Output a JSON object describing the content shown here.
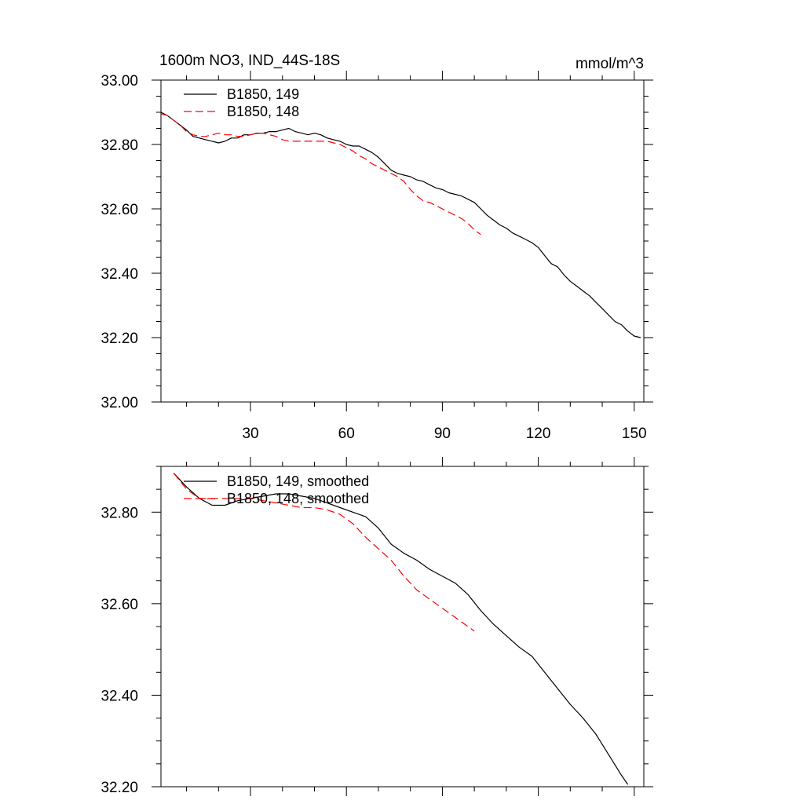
{
  "chart_data": [
    {
      "type": "line",
      "title": "1600m NO3, IND_44S-18S",
      "units": "mmol/m^3",
      "xlim": [
        2,
        153
      ],
      "ylim": [
        32.0,
        33.0
      ],
      "x_ticks": [
        30,
        60,
        90,
        120,
        150
      ],
      "y_ticks": [
        "33.00",
        "32.80",
        "32.60",
        "32.40",
        "32.20",
        "32.00"
      ],
      "series": [
        {
          "name": "B1850, 149",
          "color": "#000000",
          "dash": "solid",
          "points": [
            [
              2,
              32.9
            ],
            [
              4,
              32.89
            ],
            [
              6,
              32.875
            ],
            [
              8,
              32.86
            ],
            [
              10,
              32.845
            ],
            [
              12,
              32.825
            ],
            [
              14,
              32.82
            ],
            [
              16,
              32.815
            ],
            [
              18,
              32.81
            ],
            [
              20,
              32.805
            ],
            [
              22,
              32.81
            ],
            [
              24,
              32.82
            ],
            [
              26,
              32.82
            ],
            [
              28,
              32.83
            ],
            [
              30,
              32.83
            ],
            [
              32,
              32.835
            ],
            [
              34,
              32.835
            ],
            [
              36,
              32.84
            ],
            [
              38,
              32.84
            ],
            [
              40,
              32.845
            ],
            [
              42,
              32.85
            ],
            [
              44,
              32.84
            ],
            [
              46,
              32.835
            ],
            [
              48,
              32.83
            ],
            [
              50,
              32.835
            ],
            [
              52,
              32.83
            ],
            [
              54,
              32.82
            ],
            [
              56,
              32.815
            ],
            [
              58,
              32.81
            ],
            [
              60,
              32.8
            ],
            [
              62,
              32.795
            ],
            [
              64,
              32.795
            ],
            [
              66,
              32.785
            ],
            [
              68,
              32.775
            ],
            [
              70,
              32.76
            ],
            [
              72,
              32.74
            ],
            [
              74,
              32.72
            ],
            [
              76,
              32.71
            ],
            [
              78,
              32.705
            ],
            [
              80,
              32.7
            ],
            [
              82,
              32.69
            ],
            [
              84,
              32.685
            ],
            [
              86,
              32.675
            ],
            [
              88,
              32.665
            ],
            [
              90,
              32.66
            ],
            [
              92,
              32.65
            ],
            [
              94,
              32.645
            ],
            [
              96,
              32.64
            ],
            [
              98,
              32.63
            ],
            [
              100,
              32.62
            ],
            [
              102,
              32.6
            ],
            [
              104,
              32.58
            ],
            [
              106,
              32.565
            ],
            [
              108,
              32.55
            ],
            [
              110,
              32.54
            ],
            [
              112,
              32.525
            ],
            [
              114,
              32.515
            ],
            [
              116,
              32.505
            ],
            [
              118,
              32.495
            ],
            [
              120,
              32.48
            ],
            [
              122,
              32.455
            ],
            [
              124,
              32.43
            ],
            [
              126,
              32.42
            ],
            [
              128,
              32.395
            ],
            [
              130,
              32.375
            ],
            [
              132,
              32.36
            ],
            [
              134,
              32.345
            ],
            [
              136,
              32.33
            ],
            [
              138,
              32.31
            ],
            [
              140,
              32.29
            ],
            [
              142,
              32.27
            ],
            [
              144,
              32.25
            ],
            [
              146,
              32.24
            ],
            [
              148,
              32.22
            ],
            [
              150,
              32.205
            ],
            [
              152,
              32.2
            ]
          ]
        },
        {
          "name": "B1850, 148",
          "color": "#ff0000",
          "dash": "dashed",
          "points": [
            [
              2,
              32.895
            ],
            [
              4,
              32.89
            ],
            [
              6,
              32.875
            ],
            [
              8,
              32.86
            ],
            [
              10,
              32.84
            ],
            [
              12,
              32.83
            ],
            [
              14,
              32.825
            ],
            [
              16,
              32.825
            ],
            [
              18,
              32.83
            ],
            [
              20,
              32.835
            ],
            [
              22,
              32.83
            ],
            [
              24,
              32.83
            ],
            [
              26,
              32.825
            ],
            [
              28,
              32.825
            ],
            [
              30,
              32.83
            ],
            [
              32,
              32.835
            ],
            [
              34,
              32.835
            ],
            [
              36,
              32.83
            ],
            [
              38,
              32.825
            ],
            [
              40,
              32.815
            ],
            [
              42,
              32.81
            ],
            [
              44,
              32.81
            ],
            [
              46,
              32.81
            ],
            [
              48,
              32.81
            ],
            [
              50,
              32.81
            ],
            [
              52,
              32.81
            ],
            [
              54,
              32.81
            ],
            [
              56,
              32.805
            ],
            [
              58,
              32.8
            ],
            [
              60,
              32.79
            ],
            [
              62,
              32.78
            ],
            [
              64,
              32.765
            ],
            [
              66,
              32.755
            ],
            [
              68,
              32.74
            ],
            [
              70,
              32.73
            ],
            [
              72,
              32.72
            ],
            [
              74,
              32.71
            ],
            [
              76,
              32.7
            ],
            [
              78,
              32.685
            ],
            [
              80,
              32.66
            ],
            [
              82,
              32.64
            ],
            [
              84,
              32.625
            ],
            [
              86,
              32.62
            ],
            [
              88,
              32.61
            ],
            [
              90,
              32.6
            ],
            [
              92,
              32.59
            ],
            [
              94,
              32.58
            ],
            [
              96,
              32.57
            ],
            [
              98,
              32.555
            ],
            [
              100,
              32.535
            ],
            [
              102,
              32.52
            ]
          ]
        }
      ]
    },
    {
      "type": "line",
      "title": "",
      "xlim": [
        2,
        153
      ],
      "ylim": [
        32.2,
        32.9
      ],
      "y_ticks": [
        "32.80",
        "32.60",
        "32.40",
        "32.20"
      ],
      "series": [
        {
          "name": "B1850, 149, smoothed",
          "color": "#000000",
          "dash": "solid",
          "points": [
            [
              6,
              32.885
            ],
            [
              10,
              32.855
            ],
            [
              14,
              32.83
            ],
            [
              18,
              32.815
            ],
            [
              22,
              32.815
            ],
            [
              26,
              32.825
            ],
            [
              30,
              32.83
            ],
            [
              34,
              32.835
            ],
            [
              38,
              32.84
            ],
            [
              42,
              32.84
            ],
            [
              46,
              32.835
            ],
            [
              50,
              32.83
            ],
            [
              54,
              32.82
            ],
            [
              58,
              32.81
            ],
            [
              62,
              32.8
            ],
            [
              66,
              32.79
            ],
            [
              70,
              32.765
            ],
            [
              74,
              32.73
            ],
            [
              78,
              32.71
            ],
            [
              82,
              32.695
            ],
            [
              86,
              32.675
            ],
            [
              90,
              32.66
            ],
            [
              94,
              32.645
            ],
            [
              98,
              32.62
            ],
            [
              102,
              32.585
            ],
            [
              106,
              32.555
            ],
            [
              110,
              32.53
            ],
            [
              114,
              32.505
            ],
            [
              118,
              32.485
            ],
            [
              122,
              32.45
            ],
            [
              126,
              32.415
            ],
            [
              130,
              32.38
            ],
            [
              134,
              32.35
            ],
            [
              138,
              32.315
            ],
            [
              142,
              32.27
            ],
            [
              146,
              32.225
            ],
            [
              148,
              32.205
            ]
          ]
        },
        {
          "name": "B1850, 148, smoothed",
          "color": "#ff0000",
          "dash": "dashed",
          "points": [
            [
              6,
              32.885
            ],
            [
              10,
              32.85
            ],
            [
              14,
              32.83
            ],
            [
              18,
              32.83
            ],
            [
              22,
              32.83
            ],
            [
              26,
              32.83
            ],
            [
              30,
              32.83
            ],
            [
              34,
              32.825
            ],
            [
              38,
              32.82
            ],
            [
              42,
              32.815
            ],
            [
              46,
              32.81
            ],
            [
              50,
              32.81
            ],
            [
              54,
              32.805
            ],
            [
              58,
              32.795
            ],
            [
              62,
              32.775
            ],
            [
              66,
              32.745
            ],
            [
              70,
              32.72
            ],
            [
              74,
              32.695
            ],
            [
              78,
              32.66
            ],
            [
              82,
              32.63
            ],
            [
              86,
              32.61
            ],
            [
              90,
              32.59
            ],
            [
              94,
              32.57
            ],
            [
              98,
              32.55
            ],
            [
              100,
              32.54
            ]
          ]
        }
      ]
    }
  ]
}
